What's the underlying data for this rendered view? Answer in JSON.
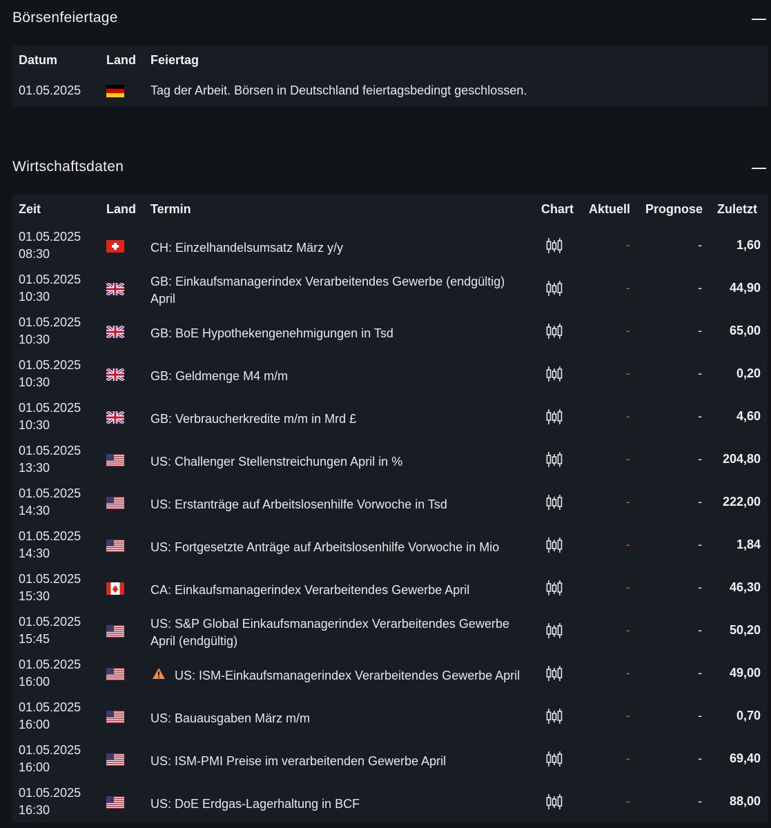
{
  "holidays": {
    "title": "Börsenfeiertage",
    "headers": {
      "date": "Datum",
      "country": "Land",
      "holiday": "Feiertag"
    },
    "rows": [
      {
        "date": "01.05.2025",
        "flag": "de",
        "text": "Tag der Arbeit. Börsen in Deutschland feiertagsbedingt geschlossen."
      }
    ]
  },
  "economic": {
    "title": "Wirtschaftsdaten",
    "headers": {
      "time": "Zeit",
      "country": "Land",
      "event": "Termin",
      "chart": "Chart",
      "actual": "Aktuell",
      "forecast": "Prognose",
      "previous": "Zuletzt"
    },
    "rows": [
      {
        "date": "01.05.2025",
        "time": "08:30",
        "flag": "ch",
        "event": "CH: Einzelhandelsumsatz März y/y",
        "actual": "-",
        "forecast": "-",
        "previous": "1,60",
        "warn": false
      },
      {
        "date": "01.05.2025",
        "time": "10:30",
        "flag": "gb",
        "event": "GB: Einkaufsmanagerindex Verarbeitendes Gewerbe (endgültig) April",
        "actual": "-",
        "forecast": "-",
        "previous": "44,90",
        "warn": false
      },
      {
        "date": "01.05.2025",
        "time": "10:30",
        "flag": "gb",
        "event": "GB: BoE Hypothekengenehmigungen in Tsd",
        "actual": "-",
        "forecast": "-",
        "previous": "65,00",
        "warn": false
      },
      {
        "date": "01.05.2025",
        "time": "10:30",
        "flag": "gb",
        "event": "GB: Geldmenge M4 m/m",
        "actual": "-",
        "forecast": "-",
        "previous": "0,20",
        "warn": false
      },
      {
        "date": "01.05.2025",
        "time": "10:30",
        "flag": "gb",
        "event": "GB: Verbraucherkredite m/m in Mrd £",
        "actual": "-",
        "forecast": "-",
        "previous": "4,60",
        "warn": false
      },
      {
        "date": "01.05.2025",
        "time": "13:30",
        "flag": "us",
        "event": "US: Challenger Stellenstreichungen April in %",
        "actual": "-",
        "forecast": "-",
        "previous": "204,80",
        "warn": false
      },
      {
        "date": "01.05.2025",
        "time": "14:30",
        "flag": "us",
        "event": "US: Erstanträge auf Arbeitslosenhilfe Vorwoche in Tsd",
        "actual": "-",
        "forecast": "-",
        "previous": "222,00",
        "warn": false
      },
      {
        "date": "01.05.2025",
        "time": "14:30",
        "flag": "us",
        "event": "US: Fortgesetzte Anträge auf Arbeitslosenhilfe Vorwoche in Mio",
        "actual": "-",
        "forecast": "-",
        "previous": "1,84",
        "warn": false
      },
      {
        "date": "01.05.2025",
        "time": "15:30",
        "flag": "ca",
        "event": "CA: Einkaufsmanagerindex Verarbeitendes Gewerbe April",
        "actual": "-",
        "forecast": "-",
        "previous": "46,30",
        "warn": false
      },
      {
        "date": "01.05.2025",
        "time": "15:45",
        "flag": "us",
        "event": "US: S&P Global Einkaufsmanagerindex Verarbeitendes Gewerbe April (endgültig)",
        "actual": "-",
        "forecast": "-",
        "previous": "50,20",
        "warn": false
      },
      {
        "date": "01.05.2025",
        "time": "16:00",
        "flag": "us",
        "event": "US: ISM-Einkaufsmanagerindex Verarbeitendes Gewerbe April",
        "actual": "-",
        "forecast": "-",
        "previous": "49,00",
        "warn": true
      },
      {
        "date": "01.05.2025",
        "time": "16:00",
        "flag": "us",
        "event": "US: Bauausgaben März m/m",
        "actual": "-",
        "forecast": "-",
        "previous": "0,70",
        "warn": false
      },
      {
        "date": "01.05.2025",
        "time": "16:00",
        "flag": "us",
        "event": "US: ISM-PMI Preise im verarbeitenden Gewerbe April",
        "actual": "-",
        "forecast": "-",
        "previous": "69,40",
        "warn": false
      },
      {
        "date": "01.05.2025",
        "time": "16:30",
        "flag": "us",
        "event": "US: DoE Erdgas-Lagerhaltung in BCF",
        "actual": "-",
        "forecast": "-",
        "previous": "88,00",
        "warn": false
      }
    ]
  },
  "colors": {
    "background": "#111419",
    "panel": "#181c23",
    "dash": "#e0533f",
    "warn": "#f08a4b"
  },
  "icons": {
    "collapse": "minus-icon",
    "chart": "candlestick-chart-icon",
    "warning": "warning-triangle-icon"
  }
}
